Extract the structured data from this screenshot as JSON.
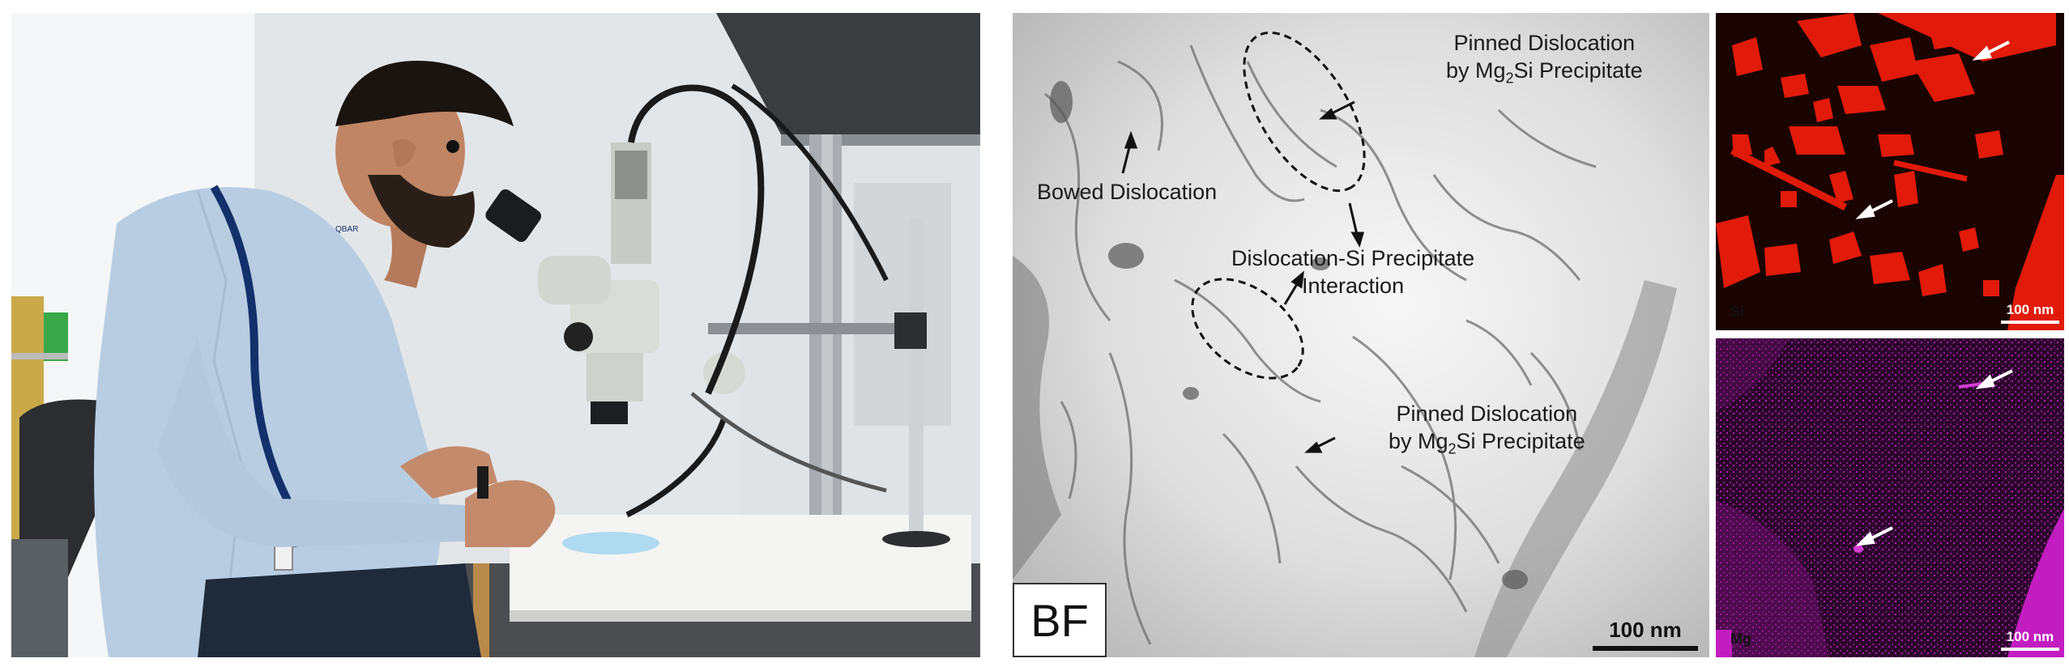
{
  "colors": {
    "shirt": "#b8cde2",
    "si_map": "#e11a0a",
    "mg_map": "#c21dc1",
    "tem_background": "#d9d9d9"
  },
  "photo": {
    "badge_text": "QBAR"
  },
  "tem": {
    "annotations": {
      "bowed": "Bowed Dislocation",
      "pinned_top_line1": "Pinned Dislocation",
      "pinned_top_line2_prefix": "by Mg",
      "pinned_top_line2_sub": "2",
      "pinned_top_line2_suffix": "Si Precipitate",
      "interaction_line1": "Dislocation-Si Precipitate",
      "interaction_line2": "Interaction",
      "pinned_bottom_line1": "Pinned Dislocation",
      "pinned_bottom_line2_prefix": "by Mg",
      "pinned_bottom_line2_sub": "2",
      "pinned_bottom_line2_suffix": "Si Precipitate"
    },
    "mode_label": "BF",
    "scale_bar": "100 nm"
  },
  "eds": {
    "si": {
      "label": "Si",
      "scale_bar": "100 nm"
    },
    "mg": {
      "label": "Mg",
      "scale_bar": "100 nm"
    }
  }
}
